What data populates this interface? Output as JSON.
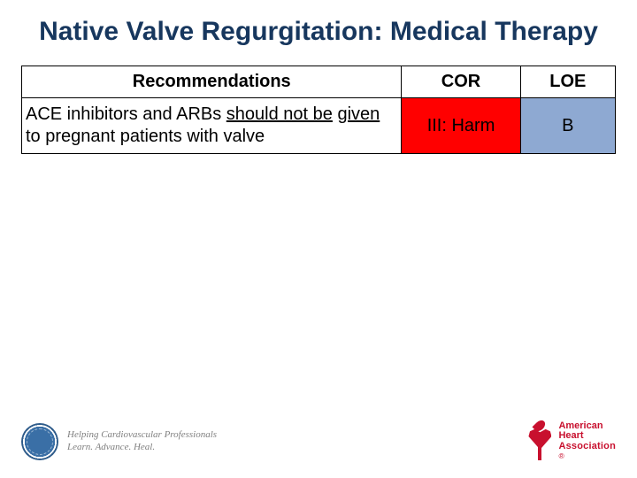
{
  "title": "Native Valve Regurgitation: Medical Therapy",
  "table": {
    "headers": {
      "rec": "Recommendations",
      "cor": "COR",
      "loe": "LOE"
    },
    "row": {
      "rec_pre": "ACE inhibitors and ARBs ",
      "rec_ul1": "should not be",
      "rec_mid": " ",
      "rec_ul2": "given",
      "rec_post": " to pregnant patients with valve",
      "cor": "III: Harm",
      "loe": "B",
      "cor_bg": "#ff0000",
      "loe_bg": "#8ea9d2"
    }
  },
  "footer": {
    "tagline_l1": "Helping Cardiovascular Professionals",
    "tagline_l2": "Learn. Advance. Heal.",
    "aha_w1": "American",
    "aha_w2": "Heart",
    "aha_w3": "Association",
    "aha_sub": "®"
  },
  "colors": {
    "title": "#17375e",
    "border": "#000000",
    "tagline": "#808080",
    "aha_red": "#c8102e"
  }
}
